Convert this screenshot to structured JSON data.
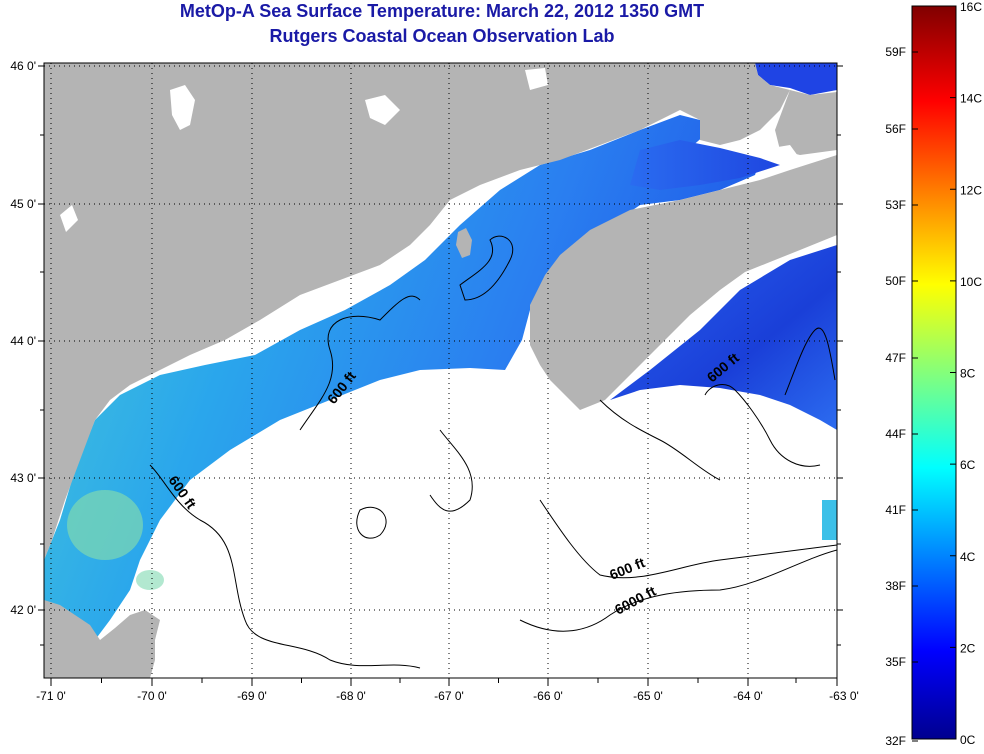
{
  "header": {
    "title": "MetOp-A Sea Surface Temperature:  March 22, 2012 1350 GMT",
    "subtitle": "Rutgers Coastal Ocean Observation Lab"
  },
  "map": {
    "lon_ticks": [
      "-71 0'",
      "-70 0'",
      "-69 0'",
      "-68 0'",
      "-67 0'",
      "-66 0'",
      "-65 0'",
      "-64 0'",
      "-63 0'"
    ],
    "lat_ticks": [
      "46 0'",
      "45 0'",
      "44 0'",
      "43 0'",
      "42 0'"
    ],
    "contour_labels": [
      "600 ft",
      "600 ft",
      "600 ft",
      "600 ft",
      "6000 ft"
    ],
    "colors": {
      "land": "#b4b4b4",
      "cloud": "#ffffff",
      "water_cold": "#1f4be8",
      "water_mid": "#2a8cf0",
      "water_warm": "#3ec3e6"
    }
  },
  "colorbar": {
    "celsius": [
      "16C",
      "14C",
      "12C",
      "10C",
      "8C",
      "6C",
      "4C",
      "2C",
      "0C"
    ],
    "fahrenheit": [
      "59F",
      "56F",
      "53F",
      "50F",
      "47F",
      "44F",
      "41F",
      "38F",
      "35F",
      "32F"
    ]
  }
}
